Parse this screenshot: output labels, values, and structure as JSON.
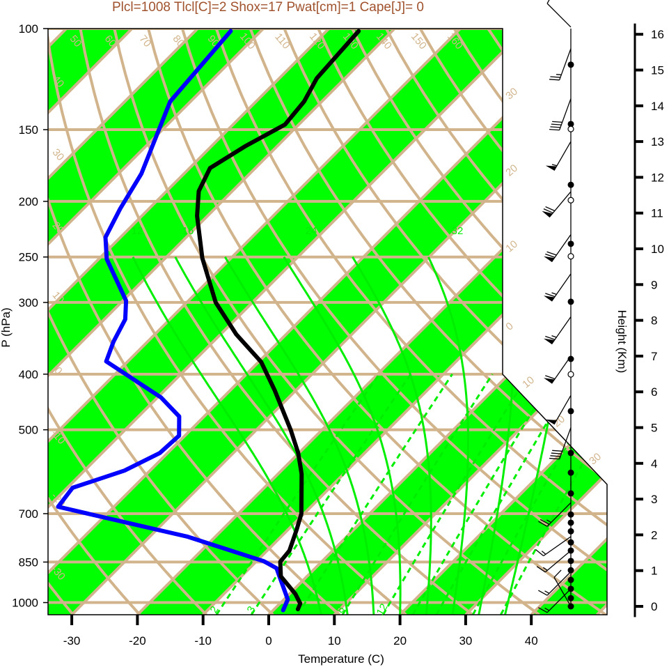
{
  "chart_data": {
    "type": "skew-t",
    "title": "Plcl=1008 Tlcl[C]=2 Shox=17 Pwat[cm]=1 Cape[J]= 0",
    "xlabel": "Temperature (C)",
    "ylabel": "P (hPa)",
    "y2label": "Height (Km)",
    "xlim": [
      -33,
      47
    ],
    "ylim": [
      1050,
      100
    ],
    "x_ticks": [
      -30,
      -20,
      -10,
      0,
      10,
      20,
      30,
      40
    ],
    "y_ticks": [
      100,
      150,
      200,
      250,
      300,
      400,
      500,
      700,
      850,
      1000
    ],
    "height_ticks": [
      0,
      1,
      2,
      3,
      4,
      5,
      6,
      7,
      8,
      9,
      10,
      11,
      12,
      13,
      14,
      15,
      16
    ],
    "colors": {
      "temperature": "#000000",
      "dewpoint": "#0000ff",
      "band": "#00ff00",
      "grid": "#d2b48c",
      "moist": "#00ee00",
      "title": "#a0522d"
    },
    "theta_labels": [
      "50",
      "60",
      "70",
      "80",
      "90",
      "100",
      "110",
      "120",
      "130",
      "140",
      "150",
      "160"
    ],
    "left_labels": [
      "40",
      "30",
      "20",
      "10",
      "0",
      "-10",
      "-20",
      "-30"
    ],
    "right_labels": [
      "30",
      "20",
      "10",
      "0",
      "10",
      "20",
      "30"
    ],
    "moist_labels": [
      "12",
      "16",
      "24",
      "32"
    ],
    "mixing_labels": [
      "2",
      "3",
      "8",
      "12"
    ],
    "temperature": [
      {
        "p": 1027,
        "t": 3.6
      },
      {
        "p": 1004,
        "t": 3.1
      },
      {
        "p": 966,
        "t": 0.9
      },
      {
        "p": 900,
        "t": -4.0
      },
      {
        "p": 849,
        "t": -6.3
      },
      {
        "p": 812,
        "t": -6.6
      },
      {
        "p": 746,
        "t": -8.7
      },
      {
        "p": 700,
        "t": -10.4
      },
      {
        "p": 597,
        "t": -16.4
      },
      {
        "p": 549,
        "t": -20.1
      },
      {
        "p": 500,
        "t": -24.8
      },
      {
        "p": 427,
        "t": -33.2
      },
      {
        "p": 381,
        "t": -39.6
      },
      {
        "p": 341,
        "t": -47.6
      },
      {
        "p": 300,
        "t": -55.6
      },
      {
        "p": 251,
        "t": -64.4
      },
      {
        "p": 212,
        "t": -71.6
      },
      {
        "p": 192,
        "t": -75.1
      },
      {
        "p": 175,
        "t": -76.9
      },
      {
        "p": 160,
        "t": -74.8
      },
      {
        "p": 147,
        "t": -72.1
      },
      {
        "p": 134,
        "t": -72.7
      },
      {
        "p": 122,
        "t": -74.3
      },
      {
        "p": 101,
        "t": -75.1
      }
    ],
    "dewpoint": [
      {
        "p": 1031,
        "t": 1.5
      },
      {
        "p": 988,
        "t": 0.6
      },
      {
        "p": 871,
        "t": -5.9
      },
      {
        "p": 847,
        "t": -8.9
      },
      {
        "p": 768,
        "t": -24.2
      },
      {
        "p": 681,
        "t": -48.5
      },
      {
        "p": 631,
        "t": -49.2
      },
      {
        "p": 589,
        "t": -43.9
      },
      {
        "p": 549,
        "t": -41.2
      },
      {
        "p": 512,
        "t": -40.9
      },
      {
        "p": 474,
        "t": -43.8
      },
      {
        "p": 439,
        "t": -49.5
      },
      {
        "p": 380,
        "t": -63.3
      },
      {
        "p": 351,
        "t": -65.2
      },
      {
        "p": 321,
        "t": -66.8
      },
      {
        "p": 298,
        "t": -69.5
      },
      {
        "p": 252,
        "t": -78.8
      },
      {
        "p": 231,
        "t": -82.3
      },
      {
        "p": 206,
        "t": -84.4
      },
      {
        "p": 179,
        "t": -86.5
      },
      {
        "p": 134,
        "t": -93.1
      },
      {
        "p": 101,
        "t": -94.6
      }
    ],
    "winds": [
      {
        "h": 16.2,
        "dir": 315,
        "kt": 10
      },
      {
        "h": 15.6,
        "dir": 200,
        "kt": 25
      },
      {
        "h": 14.2,
        "dir": 200,
        "kt": 40
      },
      {
        "h": 13.0,
        "dir": 210,
        "kt": 55
      },
      {
        "h": 11.6,
        "dir": 220,
        "kt": 70
      },
      {
        "h": 10.4,
        "dir": 215,
        "kt": 70
      },
      {
        "h": 9.3,
        "dir": 215,
        "kt": 65
      },
      {
        "h": 8.1,
        "dir": 215,
        "kt": 65
      },
      {
        "h": 7.0,
        "dir": 215,
        "kt": 60
      },
      {
        "h": 5.9,
        "dir": 210,
        "kt": 50
      },
      {
        "h": 5.0,
        "dir": 200,
        "kt": 40
      },
      {
        "h": 2.9,
        "dir": 225,
        "kt": 25
      },
      {
        "h": 1.95,
        "dir": 235,
        "kt": 15
      },
      {
        "h": 1.56,
        "dir": 230,
        "kt": 15
      },
      {
        "h": 0.97,
        "dir": 225,
        "kt": 15
      },
      {
        "h": 0.49,
        "dir": 225,
        "kt": 15
      },
      {
        "h": 0.0,
        "dir": 330,
        "kt": 10
      }
    ],
    "filled_dots_km": [
      15.15,
      13.49,
      11.79,
      10.14,
      8.52,
      6.92,
      5.46,
      4.29,
      3.74,
      3.16,
      2.57,
      2.34,
      2.1,
      1.79,
      1.56,
      1.27,
      1.01,
      0.74,
      0.49,
      0.23,
      0
    ],
    "open_dots_km": [
      13.35,
      11.36,
      9.79,
      6.49
    ]
  }
}
